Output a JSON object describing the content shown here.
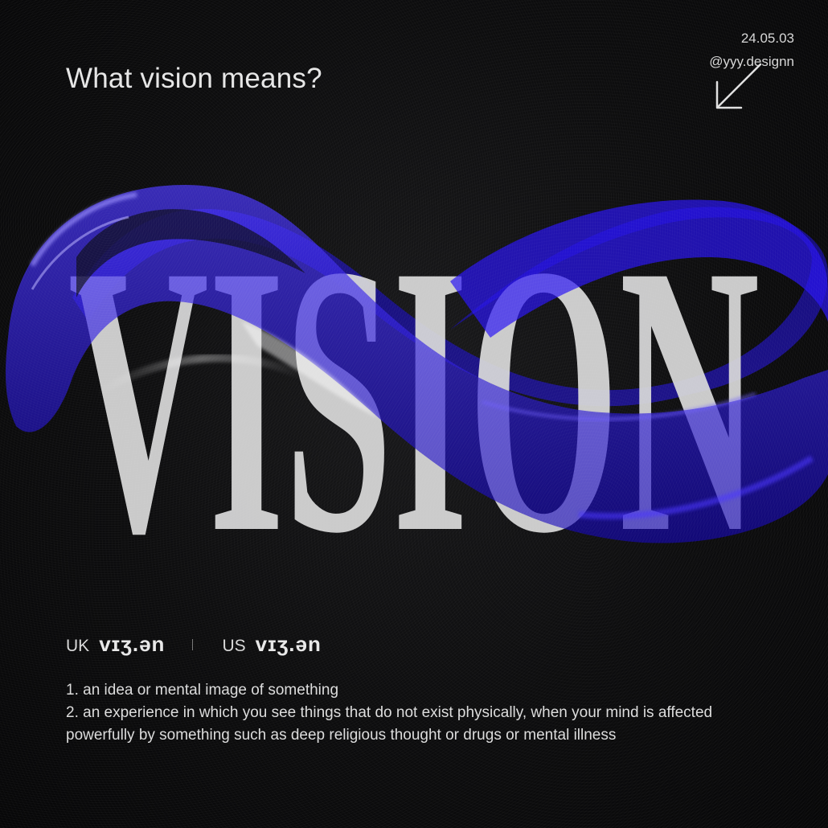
{
  "header": {
    "title": "What vision means?",
    "date": "24.05.03",
    "handle": "@yyy.designn"
  },
  "hero": {
    "word": "VISION"
  },
  "pronunciation": {
    "uk_label": "UK",
    "uk_ipa": "vɪʒ.ən",
    "us_label": "US",
    "us_ipa": "vɪʒ.ən"
  },
  "definitions": [
    "1. an idea or mental image of something",
    "2. an experience in which you see things that do not exist physically, when your mind is affected powerfully by something such as deep religious thought or drugs or mental illness"
  ],
  "colors": {
    "background": "#0b0b0c",
    "accent": "#2a12e8",
    "text": "#e6e6e6"
  },
  "icons": {
    "arrow": "arrow-down-left-icon"
  }
}
